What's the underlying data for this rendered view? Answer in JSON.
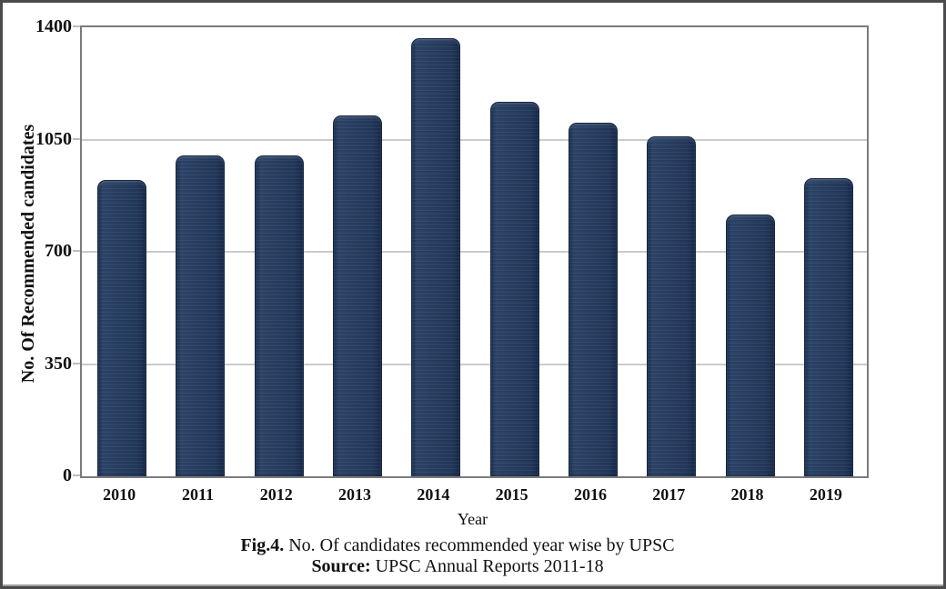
{
  "chart_data": {
    "type": "bar",
    "categories": [
      "2010",
      "2011",
      "2012",
      "2013",
      "2014",
      "2015",
      "2016",
      "2017",
      "2018",
      "2019"
    ],
    "values": [
      920,
      999,
      998,
      1122,
      1364,
      1164,
      1099,
      1056,
      812,
      927
    ],
    "title": "",
    "xlabel": "Year",
    "ylabel": "No. Of Recommended candidates",
    "ylim": [
      0,
      1400
    ],
    "yticks": [
      0,
      350,
      700,
      1050,
      1400
    ],
    "grid": true,
    "legend": "none",
    "bar_color": "#263d5f"
  },
  "caption": {
    "fig_label": "Fig.4.",
    "fig_text": "No. Of candidates recommended year wise by UPSC",
    "source_label": "Source:",
    "source_text": "UPSC Annual Reports 2011-18"
  },
  "colors": {
    "bar_fill": "#263d5f",
    "bar_border": "#152845",
    "gridline": "#cbcbcb",
    "plot_border": "#7b7b7b",
    "frame_border": "#4b4b4d",
    "text": "#111111"
  }
}
